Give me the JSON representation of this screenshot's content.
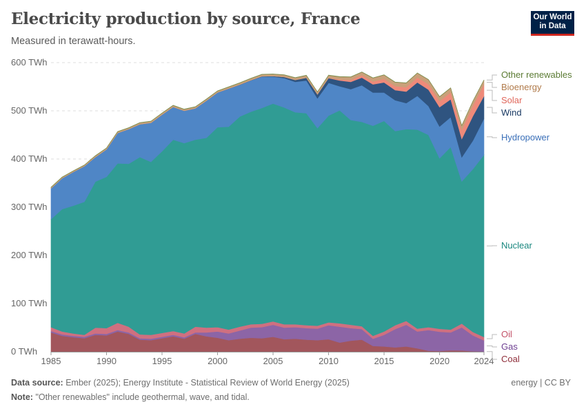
{
  "header": {
    "title": "Electricity production by source, France",
    "subtitle": "Measured in terawatt-hours.",
    "logo_text": "Our World in Data"
  },
  "footer": {
    "source_label": "Data source:",
    "source_text": "Ember (2025); Energy Institute - Statistical Review of World Energy (2025)",
    "note_label": "Note:",
    "note_text": "\"Other renewables\" include geothermal, wave, and tidal.",
    "license": "energy | CC BY"
  },
  "chart_data": {
    "type": "area",
    "stacked": true,
    "title": "Electricity production by source, France",
    "subtitle": "Measured in terawatt-hours.",
    "unit": "TWh",
    "ylim": [
      0,
      600
    ],
    "yticks": [
      0,
      100,
      200,
      300,
      400,
      500,
      600
    ],
    "ytick_labels": [
      "0 TWh",
      "100 TWh",
      "200 TWh",
      "300 TWh",
      "400 TWh",
      "500 TWh",
      "600 TWh"
    ],
    "xticks": [
      1985,
      1990,
      1995,
      2000,
      2005,
      2010,
      2015,
      2020,
      2024
    ],
    "grid": "horizontal dashed",
    "legend": "right, inline labels",
    "x": [
      1985,
      1986,
      1987,
      1988,
      1989,
      1990,
      1991,
      1992,
      1993,
      1994,
      1995,
      1996,
      1997,
      1998,
      1999,
      2000,
      2001,
      2002,
      2003,
      2004,
      2005,
      2006,
      2007,
      2008,
      2009,
      2010,
      2011,
      2012,
      2013,
      2014,
      2015,
      2016,
      2017,
      2018,
      2019,
      2020,
      2021,
      2022,
      2023,
      2024
    ],
    "series": [
      {
        "name": "Coal",
        "color": "#a2565c",
        "values": [
          40,
          33,
          30,
          28,
          35,
          34,
          42,
          37,
          25,
          24,
          28,
          32,
          27,
          37,
          32,
          29,
          24,
          27,
          29,
          28,
          31,
          26,
          27,
          25,
          24,
          26,
          19,
          23,
          25,
          12,
          11,
          9,
          11,
          7,
          2,
          1.5,
          3,
          2.5,
          1,
          0.6
        ]
      },
      {
        "name": "Gas",
        "color": "#8c65a6",
        "values": [
          3,
          3,
          3,
          3,
          3,
          3,
          3,
          3,
          3,
          3,
          3,
          3,
          3,
          3,
          8,
          13,
          14,
          17,
          21,
          23,
          25,
          24,
          24,
          24,
          24,
          29,
          33,
          26,
          22,
          15,
          24,
          38,
          45,
          35,
          43,
          40,
          37,
          48,
          33,
          23
        ]
      },
      {
        "name": "Oil",
        "color": "#cf7080",
        "values": [
          8,
          6,
          5,
          4,
          12,
          12,
          15,
          12,
          8,
          8,
          8,
          8,
          8,
          12,
          10,
          9,
          8,
          8,
          7,
          7,
          7,
          7,
          6,
          6,
          6,
          6,
          7,
          7,
          6,
          6,
          7,
          8,
          8,
          6,
          6,
          6,
          6,
          8,
          7,
          7
        ]
      },
      {
        "name": "Nuclear",
        "color": "#309c94",
        "values": [
          224,
          254,
          265,
          276,
          303,
          314,
          331,
          338,
          368,
          359,
          377,
          397,
          395,
          388,
          394,
          415,
          421,
          436,
          441,
          448,
          452,
          450,
          440,
          440,
          410,
          429,
          442,
          425,
          424,
          436,
          437,
          403,
          398,
          413,
          399,
          354,
          379,
          295,
          338,
          378
        ]
      },
      {
        "name": "Hydropower",
        "color": "#4f86c6",
        "values": [
          64,
          64,
          70,
          74,
          51,
          57,
          63,
          72,
          68,
          81,
          76,
          68,
          67,
          65,
          77,
          72,
          79,
          66,
          65,
          65,
          56,
          61,
          63,
          68,
          62,
          68,
          50,
          64,
          76,
          69,
          59,
          64,
          54,
          70,
          60,
          66,
          62,
          50,
          59,
          75
        ]
      },
      {
        "name": "Wind",
        "color": "#2f5480",
        "values": [
          0,
          0,
          0,
          0,
          0,
          0,
          0,
          0,
          0,
          0,
          0,
          0,
          0,
          0,
          0,
          0,
          0.1,
          0.3,
          0.4,
          0.6,
          1,
          2.2,
          4,
          5.7,
          7.9,
          9.9,
          12,
          15,
          16,
          17,
          21,
          21,
          24,
          28,
          34,
          40,
          37,
          38,
          51,
          47
        ]
      },
      {
        "name": "Solar",
        "color": "#ee8a7a",
        "values": [
          0,
          0,
          0,
          0,
          0,
          0,
          0,
          0,
          0,
          0,
          0,
          0,
          0,
          0,
          0,
          0,
          0,
          0,
          0,
          0,
          0,
          0,
          0,
          0,
          0.2,
          0.6,
          2,
          4,
          4.7,
          5.9,
          7.3,
          8.2,
          9.1,
          10.2,
          11.4,
          12.6,
          14.3,
          18.6,
          21.6,
          24
        ]
      },
      {
        "name": "Bioenergy",
        "color": "#c9a07a",
        "values": [
          2,
          2,
          2,
          2,
          2.5,
          2.5,
          2.5,
          2.5,
          3,
          3,
          3,
          3,
          3,
          3,
          3,
          3,
          3.2,
          3.4,
          3.6,
          3.8,
          4,
          4.2,
          4.4,
          4.6,
          4.8,
          5,
          5.5,
          6,
          6.5,
          7,
          8,
          8,
          8.5,
          9,
          9,
          9,
          9,
          9,
          9,
          9
        ]
      },
      {
        "name": "Other renewables",
        "color": "#7f8f4f",
        "values": [
          0.6,
          0.6,
          0.6,
          0.6,
          0.6,
          0.6,
          0.6,
          0.6,
          0.6,
          0.6,
          0.6,
          0.6,
          0.6,
          0.6,
          0.6,
          0.6,
          0.6,
          0.6,
          0.6,
          0.6,
          0.6,
          0.6,
          0.6,
          0.6,
          0.6,
          0.6,
          0.6,
          0.6,
          0.6,
          0.6,
          0.6,
          0.6,
          0.6,
          0.6,
          0.6,
          0.6,
          0.6,
          0.6,
          0.6,
          0.6
        ]
      }
    ],
    "label_colors": {
      "Coal": "#8f2e3a",
      "Gas": "#6d3e91",
      "Oil": "#c24f66",
      "Nuclear": "#18867e",
      "Hydropower": "#3a6fb8",
      "Wind": "#1a3a63",
      "Solar": "#e0665a",
      "Bioenergy": "#b07a4a",
      "Other renewables": "#5a7a32"
    }
  }
}
